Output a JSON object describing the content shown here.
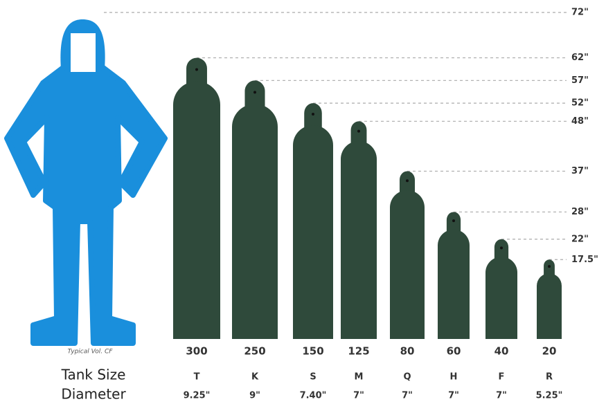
{
  "chart_data": {
    "type": "tank",
    "person_height": 72,
    "person_height_label": "72\"",
    "categories": [
      "T",
      "K",
      "S",
      "M",
      "Q",
      "H",
      "F",
      "R"
    ],
    "values": [
      62,
      57,
      52,
      48,
      37,
      28,
      22,
      17.5
    ],
    "value_labels": [
      "62\"",
      "57\"",
      "52\"",
      "48\"",
      "37\"",
      "28\"",
      "22\"",
      "17.5\""
    ],
    "volumes": [
      300,
      250,
      150,
      125,
      80,
      60,
      40,
      20
    ],
    "diameters": [
      "9.25\"",
      "9\"",
      "7.40\"",
      "7\"",
      "7\"",
      "7\"",
      "7\"",
      "5.25\""
    ],
    "volume_label": "Typical Vol. CF",
    "size_label": "Tank Size",
    "diameter_label": "Diameter",
    "color": "#2f4a3b",
    "person_color": "#1a8fdc",
    "ylim": [
      0,
      72
    ]
  }
}
